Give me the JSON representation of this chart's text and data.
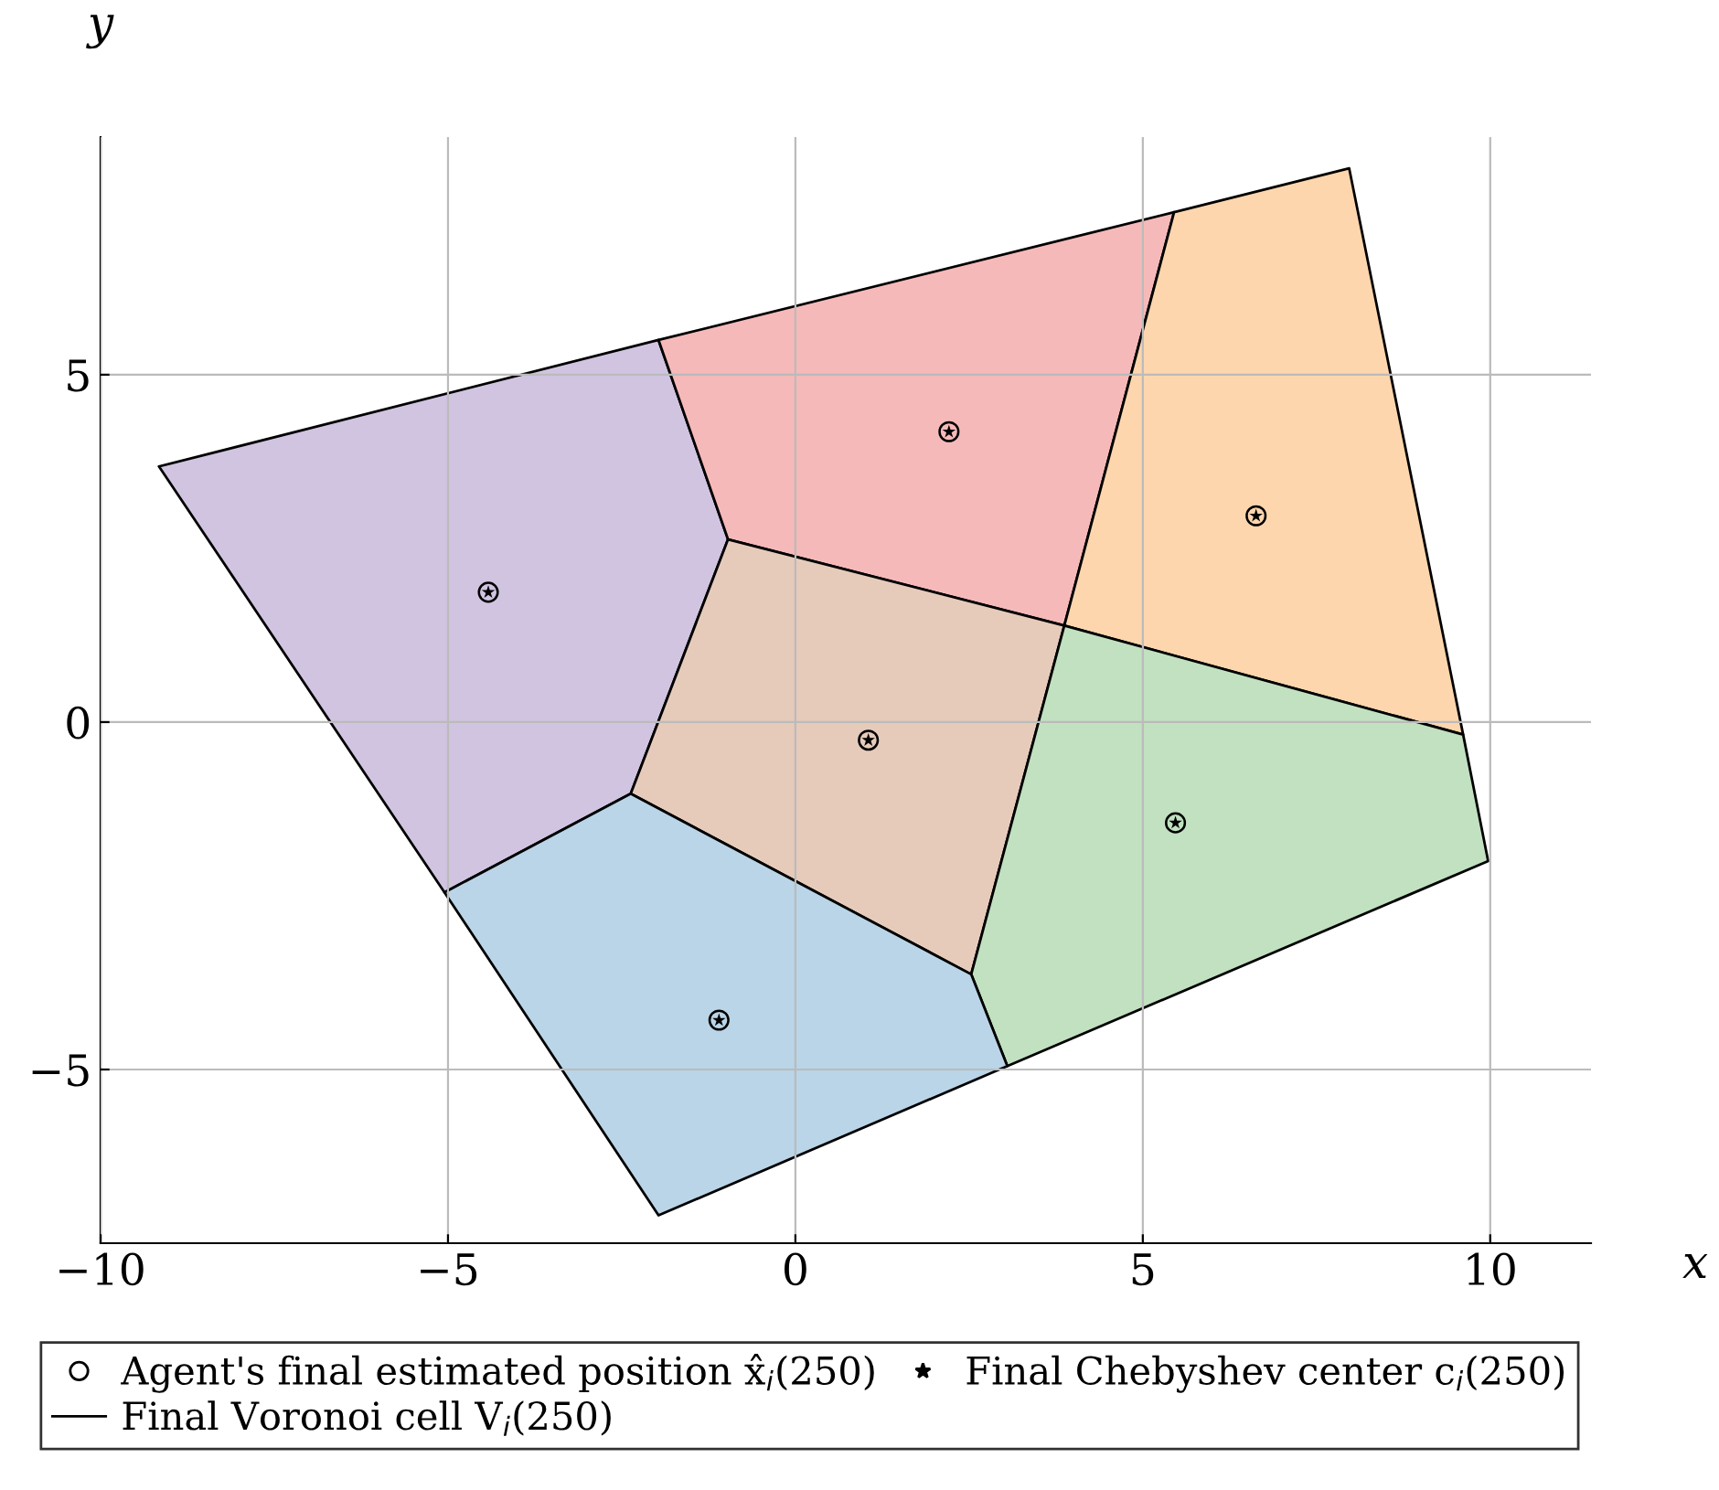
{
  "chart_data": {
    "type": "area",
    "xlabel": "x",
    "ylabel": "y",
    "xlim": [
      -10,
      11.45
    ],
    "ylim": [
      -7.5,
      8.42
    ],
    "xticks": [
      {
        "value": -10,
        "label": "−10"
      },
      {
        "value": -5,
        "label": "−5"
      },
      0,
      5,
      10
    ],
    "yticks": [
      {
        "value": -5,
        "label": "−5"
      },
      0,
      5
    ],
    "grid": true,
    "legend": "bottom",
    "series": [
      {
        "type": "scatter",
        "marker": "circle",
        "name": "Agent's final estimated position x̂$_{i}$(250)",
        "color": "#000000",
        "x": [
          -4.42,
          2.21,
          6.63,
          1.05,
          5.47,
          -1.1
        ],
        "values": [
          1.87,
          4.18,
          2.97,
          -0.26,
          -1.45,
          -4.29
        ]
      },
      {
        "type": "scatter",
        "marker": "star",
        "name": "Final Chebyshev center c$_{i}$(250)",
        "color": "#000000",
        "x": [
          -4.42,
          2.21,
          6.63,
          1.05,
          5.47,
          -1.1
        ],
        "values": [
          1.87,
          4.18,
          2.97,
          -0.26,
          -1.45,
          -4.29
        ]
      },
      {
        "name": "Final Voronoi cell V$_{i}$(250)",
        "color": "#d1c4e1",
        "x": [
          -9.16,
          -1.97,
          -0.97,
          -2.37,
          -5.05
        ],
        "values": [
          3.68,
          5.5,
          2.63,
          -1.03,
          -2.45
        ]
      },
      {
        "color": "#f6b9b9",
        "x": [
          -1.97,
          5.45,
          3.87,
          -0.97
        ],
        "values": [
          5.5,
          7.34,
          1.39,
          2.63
        ]
      },
      {
        "color": "#fdd6ae",
        "x": [
          5.45,
          7.97,
          9.61,
          3.87
        ],
        "values": [
          7.34,
          7.97,
          -0.18,
          1.39
        ]
      },
      {
        "color": "#e6cbbb",
        "x": [
          -0.97,
          3.87,
          2.53,
          -2.37
        ],
        "values": [
          2.63,
          1.39,
          -3.63,
          -1.03
        ]
      },
      {
        "color": "#c1e1c1",
        "x": [
          3.87,
          9.61,
          9.97,
          3.05,
          2.53
        ],
        "values": [
          1.39,
          -0.18,
          -2.0,
          -4.95,
          -3.63
        ]
      },
      {
        "color": "#bad5e7",
        "x": [
          -2.37,
          2.53,
          3.05,
          -1.97,
          -5.05
        ],
        "values": [
          -1.03,
          -3.63,
          -4.95,
          -7.1,
          -2.45
        ]
      }
    ]
  }
}
